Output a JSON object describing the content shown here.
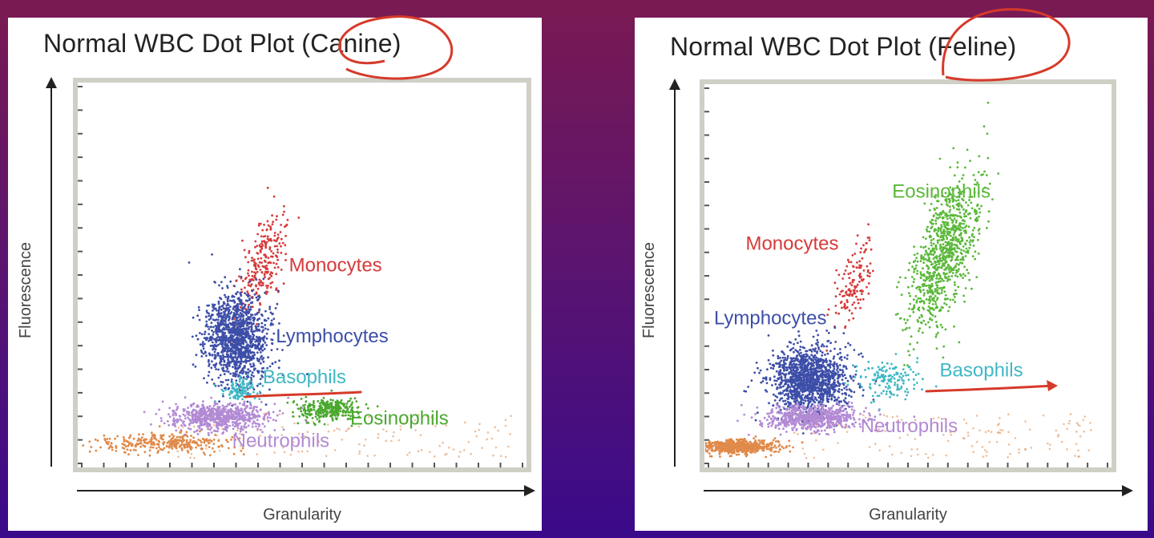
{
  "chart_data": [
    {
      "type": "scatter",
      "title": "Normal WBC Dot Plot (Canine)",
      "xlabel": "Granularity",
      "ylabel": "Fluorescence",
      "xlim": [
        0,
        100
      ],
      "ylim": [
        0,
        100
      ],
      "grid": false,
      "annotations": [
        "circled: (Canine)",
        "underline: Basophils"
      ],
      "series": [
        {
          "name": "Monocytes",
          "color": "#d63a3a",
          "center": [
            41,
            53
          ],
          "spread": [
            2.2,
            7
          ],
          "count": 260,
          "label_at": [
            47,
            51
          ]
        },
        {
          "name": "Lymphocytes",
          "color": "#3d4ea8",
          "center": [
            35,
            33
          ],
          "spread": [
            3.5,
            6
          ],
          "count": 1300,
          "label_at": [
            44,
            32
          ]
        },
        {
          "name": "Basophils",
          "color": "#3fb8c4",
          "center": [
            36,
            19
          ],
          "spread": [
            2.2,
            1.6
          ],
          "count": 110,
          "label_at": [
            41,
            21
          ]
        },
        {
          "name": "Eosinophils",
          "color": "#4aa82e",
          "center": [
            56,
            14
          ],
          "spread": [
            3.5,
            1.5
          ],
          "count": 320,
          "label_at": [
            61,
            10
          ]
        },
        {
          "name": "Neutrophils",
          "color": "#b28ad4",
          "center": [
            31,
            12
          ],
          "spread": [
            5.5,
            1.8
          ],
          "count": 700,
          "label_at": [
            34,
            4
          ]
        },
        {
          "name": "",
          "color": "#e08a4a",
          "center": [
            19,
            5
          ],
          "spread": [
            7,
            1.3
          ],
          "count": 320,
          "label_at": null
        }
      ]
    },
    {
      "type": "scatter",
      "title": "Normal WBC Dot Plot (Feline)",
      "xlabel": "Granularity",
      "ylabel": "Fluorescence",
      "xlim": [
        0,
        100
      ],
      "ylim": [
        0,
        100
      ],
      "grid": false,
      "annotations": [
        "circled: (Feline)",
        "arrow: Basophils"
      ],
      "series": [
        {
          "name": "Eosinophils",
          "color": "#5bb83a",
          "center": [
            59,
            56
          ],
          "spread": [
            3.5,
            10
          ],
          "count": 900,
          "label_at": [
            46,
            71
          ]
        },
        {
          "name": "Monocytes",
          "color": "#d63a3a",
          "center": [
            36,
            48
          ],
          "spread": [
            2,
            5.5
          ],
          "count": 140,
          "label_at": [
            9,
            57
          ]
        },
        {
          "name": "Lymphocytes",
          "color": "#3d4ea8",
          "center": [
            25,
            22
          ],
          "spread": [
            5,
            4.5
          ],
          "count": 1300,
          "label_at": [
            1,
            37
          ]
        },
        {
          "name": "Basophils",
          "color": "#3fb8c4",
          "center": [
            45,
            22
          ],
          "spread": [
            4,
            2.6
          ],
          "count": 150,
          "label_at": [
            58,
            23
          ]
        },
        {
          "name": "Neutrophils",
          "color": "#b28ad4",
          "center": [
            26,
            12
          ],
          "spread": [
            6,
            1.6
          ],
          "count": 700,
          "label_at": [
            38,
            8
          ]
        },
        {
          "name": "",
          "color": "#e08a4a",
          "center": [
            7,
            4
          ],
          "spread": [
            5,
            0.9
          ],
          "count": 600,
          "label_at": null
        }
      ]
    }
  ]
}
